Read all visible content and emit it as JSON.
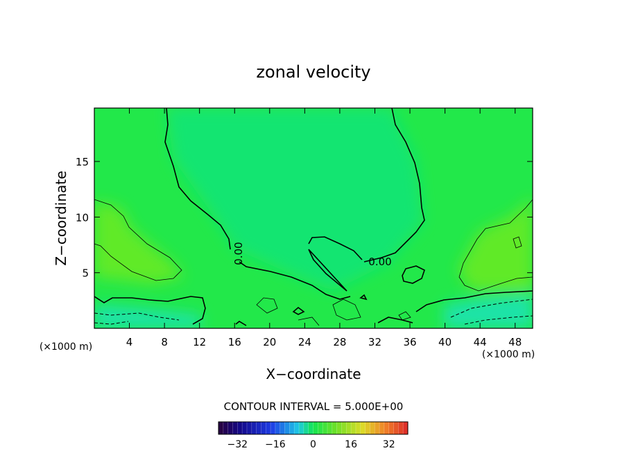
{
  "chart_data": {
    "type": "heatmap",
    "title": "zonal velocity",
    "xlabel": "X−coordinate",
    "ylabel": "Z−coordinate",
    "x_unit_left": "(×1000 m)",
    "x_unit_right": "(×1000 m)",
    "xlim": [
      0,
      50
    ],
    "ylim": [
      0,
      19.8
    ],
    "x_ticks": [
      4,
      8,
      12,
      16,
      20,
      24,
      28,
      32,
      36,
      40,
      44,
      48
    ],
    "y_ticks": [
      5,
      10,
      15
    ],
    "contour_interval_label": "CONTOUR INTERVAL = 5.000E+00",
    "colorbar": {
      "range": [
        -40,
        40
      ],
      "ticks": [
        -32,
        -16,
        0,
        16,
        32
      ],
      "colormap": "rainbow"
    },
    "contour_labels": [
      {
        "text": "0.00",
        "x": 16.2,
        "z": 6.8,
        "rotate": -90
      },
      {
        "text": "0.00",
        "x": 32.5,
        "z": 5.9,
        "rotate": 0
      }
    ],
    "field_summary": "Near-zero (green) over most of the domain; weak positive (yellow-green) aloft at left and right edges around z=5-10; negative (cyan) near the surface at both lateral boundaries."
  },
  "colors": {
    "field_background": "#22e84a",
    "center_plume": "#14e57a",
    "positive_patch": "#66ea22",
    "negative_surface": "#1ee3a8"
  }
}
